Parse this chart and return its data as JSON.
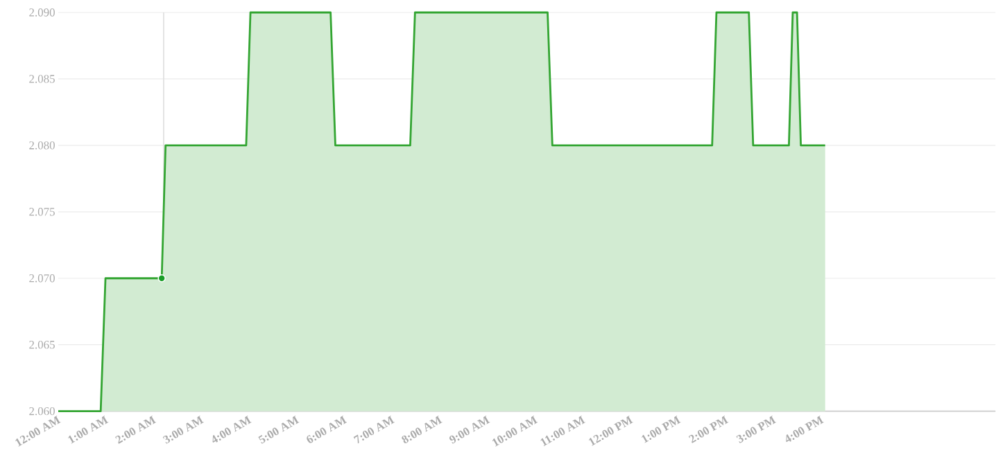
{
  "chart_data": {
    "type": "area",
    "x": [
      0,
      0.89,
      0.99,
      2.17,
      2.25,
      3.94,
      4.03,
      5.71,
      5.81,
      7.38,
      7.48,
      10.26,
      10.36,
      13.71,
      13.8,
      14.48,
      14.57,
      15.32,
      15.4,
      15.49,
      15.57,
      16.08
    ],
    "series": [
      {
        "color": "#33a532",
        "values": [
          2.06,
          2.06,
          2.07,
          2.07,
          2.08,
          2.08,
          2.09,
          2.09,
          2.08,
          2.08,
          2.09,
          2.09,
          2.08,
          2.08,
          2.09,
          2.09,
          2.08,
          2.08,
          2.09,
          2.09,
          2.08,
          2.08
        ]
      },
      {
        "type": "scatter",
        "color": "#1a9e28",
        "x": [
          2.17
        ],
        "values": [
          2.07
        ],
        "marker": "circle"
      }
    ],
    "xlim": [
      0,
      19.65
    ],
    "ylim": [
      2.06,
      2.09
    ],
    "xticks": [
      {
        "value": 0,
        "label": "12:00 AM"
      },
      {
        "value": 1,
        "label": "1:00 AM"
      },
      {
        "value": 2,
        "label": "2:00 AM"
      },
      {
        "value": 3,
        "label": "3:00 AM"
      },
      {
        "value": 4,
        "label": "4:00 AM"
      },
      {
        "value": 5,
        "label": "5:00 AM"
      },
      {
        "value": 6,
        "label": "6:00 AM"
      },
      {
        "value": 7,
        "label": "7:00 AM"
      },
      {
        "value": 8,
        "label": "8:00 AM"
      },
      {
        "value": 9,
        "label": "9:00 AM"
      },
      {
        "value": 10,
        "label": "10:00 AM"
      },
      {
        "value": 11,
        "label": "11:00 AM"
      },
      {
        "value": 12,
        "label": "12:00 PM"
      },
      {
        "value": 13,
        "label": "1:00 PM"
      },
      {
        "value": 14,
        "label": "2:00 PM"
      },
      {
        "value": 15,
        "label": "3:00 PM"
      },
      {
        "value": 16,
        "label": "4:00 PM"
      }
    ],
    "yticks": [
      {
        "value": 2.06,
        "label": "2.060"
      },
      {
        "value": 2.065,
        "label": "2.065"
      },
      {
        "value": 2.07,
        "label": "2.070"
      },
      {
        "value": 2.075,
        "label": "2.075"
      },
      {
        "value": 2.08,
        "label": "2.080"
      },
      {
        "value": 2.085,
        "label": "2.085"
      },
      {
        "value": 2.09,
        "label": "2.090"
      }
    ],
    "grid": "y",
    "ref_lines": [
      {
        "axis": "x",
        "value": 2.21,
        "color": "#dddddd"
      }
    ]
  }
}
